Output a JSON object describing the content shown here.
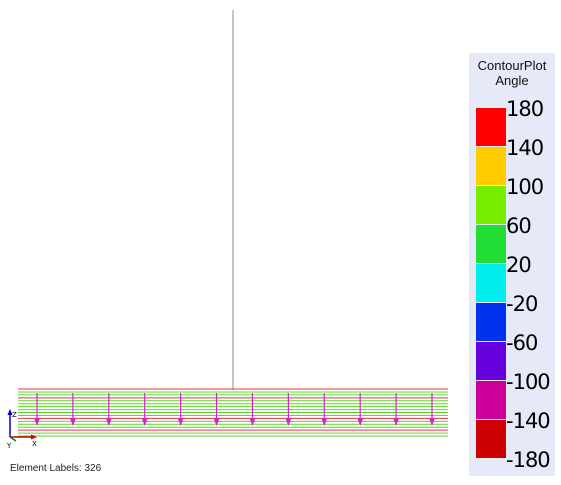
{
  "viewport": {
    "status_label": "Element Labels: 326",
    "beam_color": "#888888",
    "band_line_colors": [
      "#e8304a",
      "#55dd22",
      "#55dd22",
      "#e8304a",
      "#55dd22",
      "#55dd22",
      "#55dd22",
      "#55dd22",
      "#55dd22",
      "#55dd22",
      "#e8304a",
      "#55dd22",
      "#55dd22",
      "#55dd22",
      "#e8304a",
      "#55dd22",
      "#55dd22"
    ],
    "arrow_color": "#d820c8",
    "arrow_count": 12
  },
  "axes_triad": {
    "z_label": "Z",
    "y_label": "Y",
    "x_label": "X",
    "colors": {
      "x": "#cc0000",
      "y": "#008800",
      "z": "#0000cc"
    }
  },
  "legend": {
    "title_line1": "ContourPlot",
    "title_line2": "Angle",
    "tick_labels": [
      "180",
      "140",
      "100",
      "60",
      "20",
      "-20",
      "-60",
      "-100",
      "-140",
      "-180"
    ],
    "bands": [
      {
        "range": "140 to 180",
        "color": "#ff0000"
      },
      {
        "range": "100 to 140",
        "color": "#ffcc00"
      },
      {
        "range": "60 to 100",
        "color": "#77ee00"
      },
      {
        "range": "20 to 60",
        "color": "#22dd33"
      },
      {
        "range": "-20 to 20",
        "color": "#00eeee"
      },
      {
        "range": "-60 to -20",
        "color": "#0033ee"
      },
      {
        "range": "-100 to -60",
        "color": "#6600dd"
      },
      {
        "range": "-140 to -100",
        "color": "#cc0099"
      },
      {
        "range": "-180 to -140",
        "color": "#cc0000"
      }
    ]
  }
}
